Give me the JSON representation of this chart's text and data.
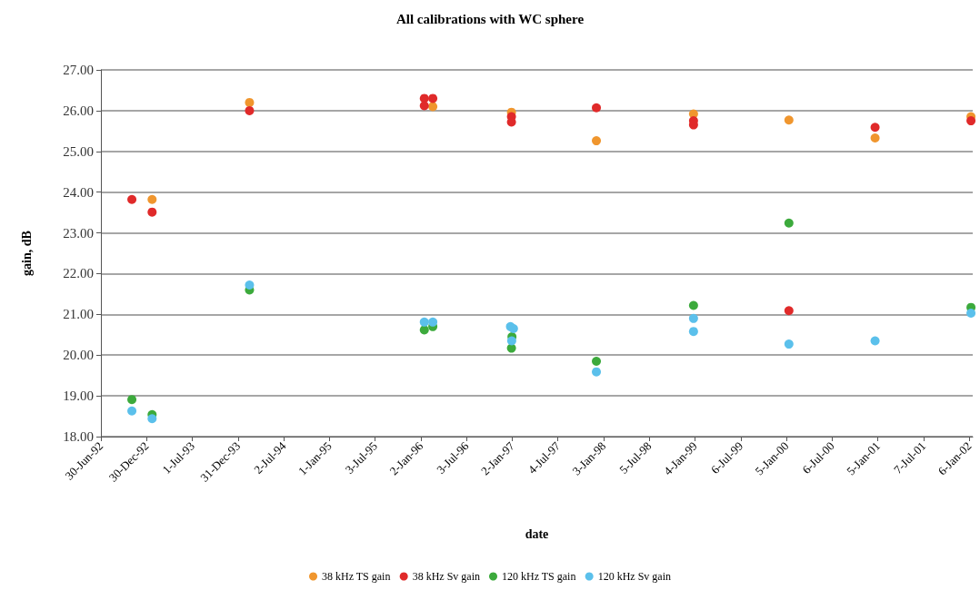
{
  "chart_data": {
    "type": "scatter",
    "title": "All calibrations with WC sphere",
    "xlabel": "date",
    "ylabel": "gain, dB",
    "xlim": [
      "1992-06-30",
      "2002-01-20"
    ],
    "xticks": [
      {
        "value": "1992-06-30",
        "label": "30-Jun-92"
      },
      {
        "value": "1992-12-30",
        "label": "30-Dec-92"
      },
      {
        "value": "1993-07-01",
        "label": "1-Jul-93"
      },
      {
        "value": "1993-12-31",
        "label": "31-Dec-93"
      },
      {
        "value": "1994-07-02",
        "label": "2-Jul-94"
      },
      {
        "value": "1995-01-01",
        "label": "1-Jan-95"
      },
      {
        "value": "1995-07-03",
        "label": "3-Jul-95"
      },
      {
        "value": "1996-01-02",
        "label": "2-Jan-96"
      },
      {
        "value": "1996-07-03",
        "label": "3-Jul-96"
      },
      {
        "value": "1997-01-02",
        "label": "2-Jan-97"
      },
      {
        "value": "1997-07-04",
        "label": "4-Jul-97"
      },
      {
        "value": "1998-01-03",
        "label": "3-Jan-98"
      },
      {
        "value": "1998-07-05",
        "label": "5-Jul-98"
      },
      {
        "value": "1999-01-04",
        "label": "4-Jan-99"
      },
      {
        "value": "1999-07-06",
        "label": "6-Jul-99"
      },
      {
        "value": "2000-01-05",
        "label": "5-Jan-00"
      },
      {
        "value": "2000-07-06",
        "label": "6-Jul-00"
      },
      {
        "value": "2001-01-05",
        "label": "5-Jan-01"
      },
      {
        "value": "2001-07-07",
        "label": "7-Jul-01"
      },
      {
        "value": "2002-01-06",
        "label": "6-Jan-02"
      }
    ],
    "ylim": [
      18,
      27
    ],
    "yticks": [
      {
        "value": 18,
        "label": "18.00"
      },
      {
        "value": 19,
        "label": "19.00"
      },
      {
        "value": 20,
        "label": "20.00"
      },
      {
        "value": 21,
        "label": "21.00"
      },
      {
        "value": 22,
        "label": "22.00"
      },
      {
        "value": 23,
        "label": "23.00"
      },
      {
        "value": 24,
        "label": "24.00"
      },
      {
        "value": 25,
        "label": "25.00"
      },
      {
        "value": 26,
        "label": "26.00"
      },
      {
        "value": 27,
        "label": "27.00"
      }
    ],
    "grid": "y",
    "legend": "bottom",
    "marker": "circle",
    "series": [
      {
        "name": "38 kHz TS gain",
        "color": "#f0962e",
        "x": [
          "1993-01-21",
          "1994-02-15",
          "1996-02-19",
          "1996-12-30",
          "1997-12-05",
          "1998-12-29",
          "2000-01-15",
          "2000-12-25",
          "2002-01-13"
        ],
        "values": [
          23.82,
          26.2,
          26.1,
          25.96,
          25.26,
          25.92,
          25.77,
          25.33,
          25.85
        ]
      },
      {
        "name": "38 kHz Sv gain",
        "color": "#e02a2a",
        "x": [
          "1992-11-01",
          "1993-01-21",
          "1994-02-15",
          "1996-01-16",
          "1996-01-16",
          "1996-02-19",
          "1996-12-30",
          "1996-12-30",
          "1997-12-05",
          "1998-12-29",
          "1998-12-29",
          "2000-01-15",
          "2000-12-25",
          "2002-01-13"
        ],
        "values": [
          23.82,
          23.51,
          26.0,
          26.3,
          26.12,
          26.3,
          25.85,
          25.72,
          26.07,
          25.75,
          25.65,
          21.09,
          25.59,
          25.75
        ]
      },
      {
        "name": "120 kHz TS gain",
        "color": "#3caa3c",
        "x": [
          "1992-11-01",
          "1993-01-21",
          "1994-02-15",
          "1996-01-16",
          "1996-02-19",
          "1997-01-01",
          "1996-12-30",
          "1997-12-05",
          "1998-12-29",
          "2000-01-15",
          "2002-01-13"
        ],
        "values": [
          18.91,
          18.54,
          21.6,
          20.62,
          20.7,
          20.45,
          20.17,
          19.85,
          21.22,
          23.24,
          21.17
        ]
      },
      {
        "name": "120 kHz Sv gain",
        "color": "#5bc0eb",
        "x": [
          "1992-11-01",
          "1993-01-21",
          "1994-02-15",
          "1996-01-16",
          "1996-02-19",
          "1996-12-26",
          "1997-01-07",
          "1996-12-31",
          "1997-12-05",
          "1998-12-29",
          "1998-12-29",
          "2000-01-15",
          "2000-12-25",
          "2002-01-13"
        ],
        "values": [
          18.63,
          18.44,
          21.72,
          20.81,
          20.81,
          20.7,
          20.65,
          20.35,
          19.59,
          20.9,
          20.58,
          20.27,
          20.35,
          21.03
        ]
      }
    ]
  }
}
